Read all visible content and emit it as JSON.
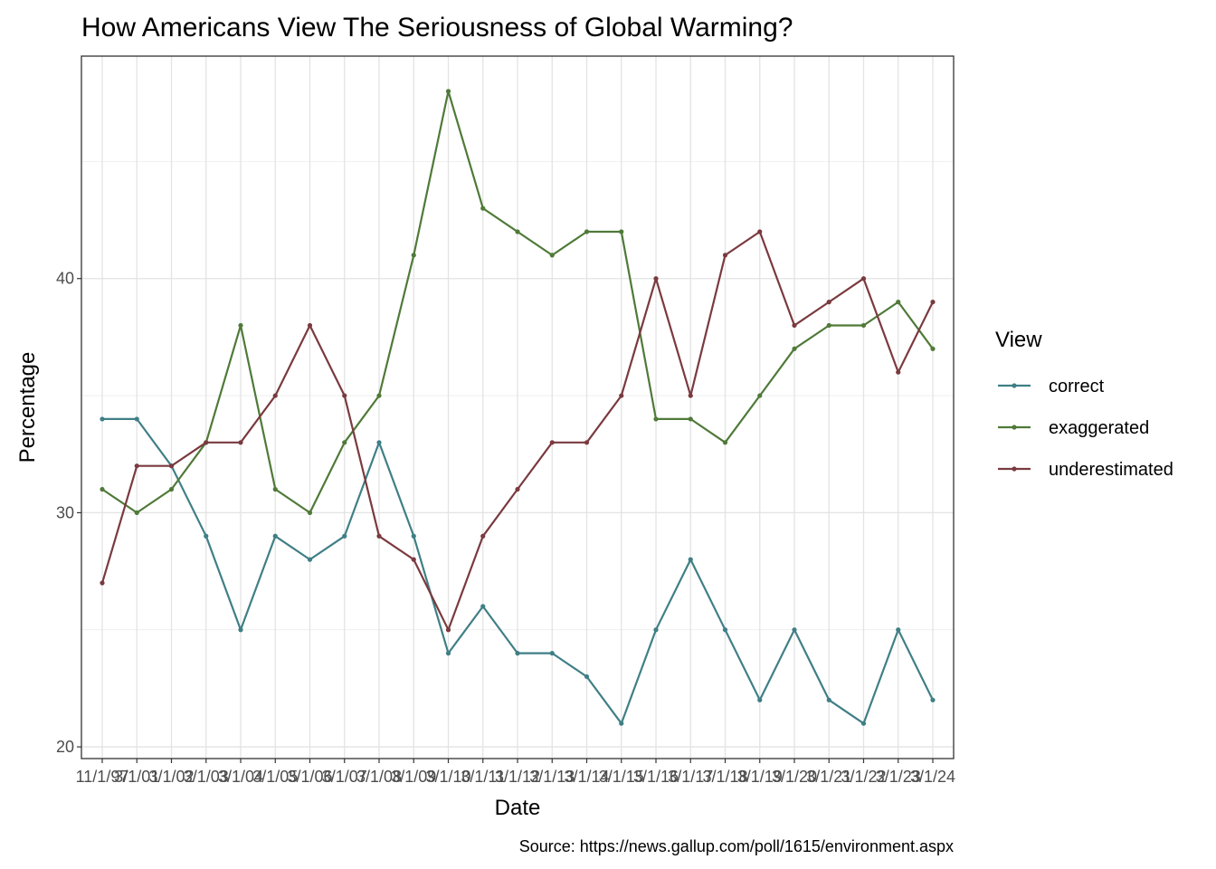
{
  "chart_data": {
    "type": "line",
    "title": "How Americans View The Seriousness of Global Warming?",
    "xlabel": "Date",
    "ylabel": "Percentage",
    "caption": "Source: https://news.gallup.com/poll/1615/environment.aspx",
    "legend_title": "View",
    "legend_position": "right",
    "grid": true,
    "ylim": [
      19.5,
      49.5
    ],
    "yticks": [
      20,
      30,
      40
    ],
    "categories": [
      "11/1/97",
      "3/1/01",
      "3/1/02",
      "3/1/03",
      "3/1/04",
      "3/1/05",
      "3/1/06",
      "3/1/07",
      "3/1/08",
      "3/1/09",
      "3/1/10",
      "3/1/11",
      "3/1/12",
      "3/1/13",
      "3/1/14",
      "3/1/15",
      "3/1/16",
      "3/1/17",
      "3/1/18",
      "3/1/19",
      "3/1/20",
      "3/1/21",
      "3/1/22",
      "3/1/23",
      "3/1/24"
    ],
    "series": [
      {
        "name": "correct",
        "color": "#3f7f86",
        "values": [
          34,
          34,
          32,
          29,
          25,
          29,
          28,
          29,
          33,
          29,
          24,
          26,
          24,
          24,
          23,
          21,
          25,
          28,
          25,
          22,
          25,
          22,
          21,
          25,
          22
        ]
      },
      {
        "name": "exaggerated",
        "color": "#4f7a38",
        "values": [
          31,
          30,
          31,
          33,
          38,
          31,
          30,
          33,
          35,
          41,
          48,
          43,
          42,
          41,
          42,
          42,
          34,
          34,
          33,
          35,
          37,
          38,
          38,
          39,
          37
        ]
      },
      {
        "name": "underestimated",
        "color": "#7a3a3f",
        "values": [
          27,
          32,
          32,
          33,
          33,
          35,
          38,
          35,
          29,
          28,
          25,
          29,
          31,
          33,
          33,
          35,
          40,
          35,
          41,
          42,
          38,
          39,
          40,
          36,
          39
        ]
      }
    ]
  }
}
